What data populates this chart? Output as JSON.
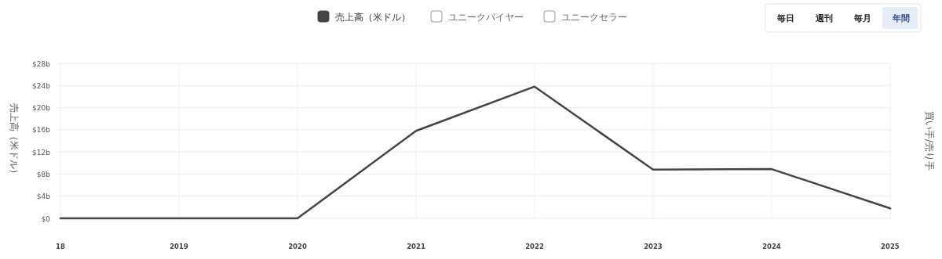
{
  "chart_data": {
    "type": "line",
    "categories": [
      "18",
      "2019",
      "2020",
      "2021",
      "2022",
      "2023",
      "2024",
      "2025"
    ],
    "series": [
      {
        "name": "売上高（米ドル）",
        "color": "#444444",
        "values": [
          0,
          0,
          0,
          15.8,
          23.8,
          8.8,
          8.9,
          1.8
        ]
      },
      {
        "name": "ユニークバイヤー",
        "color": "#ffffff",
        "values": [
          null,
          null,
          null,
          null,
          null,
          null,
          null,
          null
        ]
      },
      {
        "name": "ユニークセラー",
        "color": "#ffffff",
        "values": [
          null,
          null,
          null,
          null,
          null,
          null,
          null,
          null
        ]
      }
    ],
    "ylabel": "売上高（米ドル）",
    "y2label": "買い手/売り手",
    "ylim": [
      0,
      28
    ],
    "yticks": [
      {
        "value": 0,
        "label": "$0"
      },
      {
        "value": 4,
        "label": "$4b"
      },
      {
        "value": 8,
        "label": "$8b"
      },
      {
        "value": 12,
        "label": "$12b"
      },
      {
        "value": 16,
        "label": "$16b"
      },
      {
        "value": 20,
        "label": "$20b"
      },
      {
        "value": 24,
        "label": "$24b"
      },
      {
        "value": 28,
        "label": "$28b"
      }
    ],
    "annotations": [
      "毎日",
      "週刊",
      "毎月",
      "年間"
    ],
    "grid": true,
    "legend": "top",
    "marker": "none",
    "line_style": "solid"
  }
}
